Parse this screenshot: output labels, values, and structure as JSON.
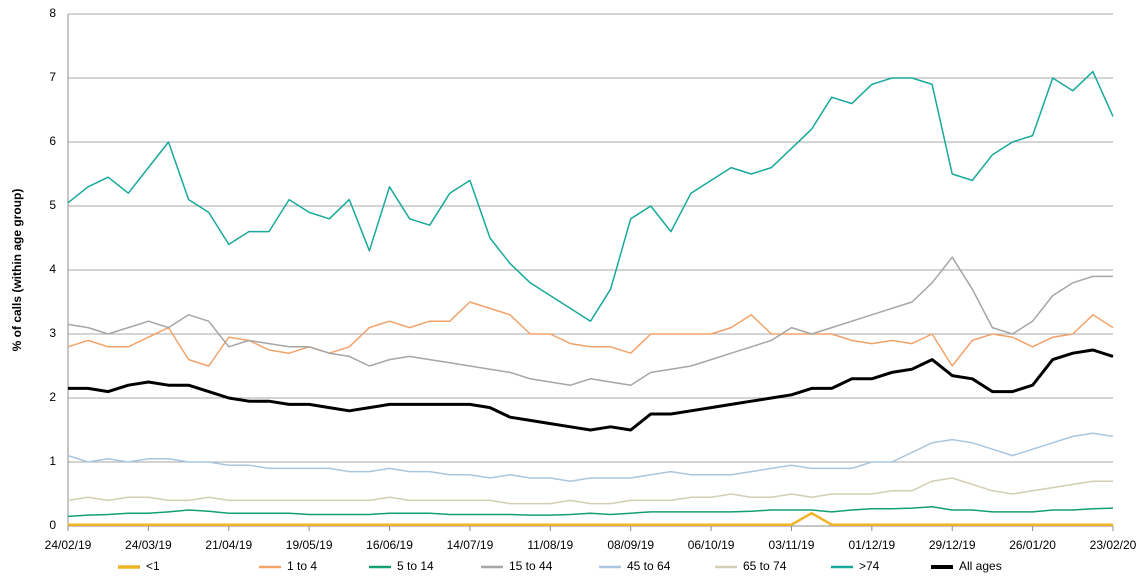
{
  "chart_data": {
    "type": "line",
    "y_label": "% of calls (within age group)",
    "xlim": [
      "2019-02-24",
      "2020-02-23"
    ],
    "xticks": [
      {
        "value": "2019-02-24",
        "label": "24/02/19"
      },
      {
        "value": "2019-03-24",
        "label": "24/03/19"
      },
      {
        "value": "2019-04-21",
        "label": "21/04/19"
      },
      {
        "value": "2019-05-19",
        "label": "19/05/19"
      },
      {
        "value": "2019-06-16",
        "label": "16/06/19"
      },
      {
        "value": "2019-07-14",
        "label": "14/07/19"
      },
      {
        "value": "2019-08-11",
        "label": "11/08/19"
      },
      {
        "value": "2019-09-08",
        "label": "08/09/19"
      },
      {
        "value": "2019-10-06",
        "label": "06/10/19"
      },
      {
        "value": "2019-11-03",
        "label": "03/11/19"
      },
      {
        "value": "2019-12-01",
        "label": "01/12/19"
      },
      {
        "value": "2019-12-29",
        "label": "29/12/19"
      },
      {
        "value": "2020-01-26",
        "label": "26/01/20"
      },
      {
        "value": "2020-02-23",
        "label": "23/02/20"
      }
    ],
    "ylim": [
      0,
      8
    ],
    "yticks": [
      0,
      1,
      2,
      3,
      4,
      5,
      6,
      7,
      8
    ],
    "grid": true,
    "legend": "bottom",
    "x": [
      "2019-02-24",
      "2019-03-03",
      "2019-03-10",
      "2019-03-17",
      "2019-03-24",
      "2019-03-31",
      "2019-04-07",
      "2019-04-14",
      "2019-04-21",
      "2019-04-28",
      "2019-05-05",
      "2019-05-12",
      "2019-05-19",
      "2019-05-26",
      "2019-06-02",
      "2019-06-09",
      "2019-06-16",
      "2019-06-23",
      "2019-06-30",
      "2019-07-07",
      "2019-07-14",
      "2019-07-21",
      "2019-07-28",
      "2019-08-04",
      "2019-08-11",
      "2019-08-18",
      "2019-08-25",
      "2019-09-01",
      "2019-09-08",
      "2019-09-15",
      "2019-09-22",
      "2019-09-29",
      "2019-10-06",
      "2019-10-13",
      "2019-10-20",
      "2019-10-27",
      "2019-11-03",
      "2019-11-10",
      "2019-11-17",
      "2019-11-24",
      "2019-12-01",
      "2019-12-08",
      "2019-12-15",
      "2019-12-22",
      "2019-12-29",
      "2020-01-05",
      "2020-01-12",
      "2020-01-19",
      "2020-01-26",
      "2020-02-02",
      "2020-02-09",
      "2020-02-16",
      "2020-02-23"
    ],
    "series": [
      {
        "name": "<1",
        "color": "#f0b323",
        "width": 2.5,
        "values": [
          0.02,
          0.02,
          0.02,
          0.02,
          0.02,
          0.02,
          0.02,
          0.02,
          0.02,
          0.02,
          0.02,
          0.02,
          0.02,
          0.02,
          0.02,
          0.02,
          0.02,
          0.02,
          0.02,
          0.02,
          0.02,
          0.02,
          0.02,
          0.02,
          0.02,
          0.02,
          0.02,
          0.02,
          0.02,
          0.02,
          0.02,
          0.02,
          0.02,
          0.02,
          0.02,
          0.02,
          0.02,
          0.2,
          0.02,
          0.02,
          0.02,
          0.02,
          0.02,
          0.02,
          0.02,
          0.02,
          0.02,
          0.02,
          0.02,
          0.02,
          0.02,
          0.02,
          0.02
        ]
      },
      {
        "name": "1 to 4",
        "color": "#f2a36a",
        "width": 1.5,
        "values": [
          2.8,
          2.9,
          2.8,
          2.8,
          2.95,
          3.1,
          2.6,
          2.5,
          2.95,
          2.9,
          2.75,
          2.7,
          2.8,
          2.7,
          2.8,
          3.1,
          3.2,
          3.1,
          3.2,
          3.2,
          3.5,
          3.4,
          3.3,
          3.0,
          3.0,
          2.85,
          2.8,
          2.8,
          2.7,
          3.0,
          3.0,
          3.0,
          3.0,
          3.1,
          3.3,
          3.0,
          3.0,
          3.0,
          3.0,
          2.9,
          2.85,
          2.9,
          2.85,
          3.0,
          2.5,
          2.9,
          3.0,
          2.95,
          2.8,
          2.95,
          3.0,
          3.3,
          3.1
        ]
      },
      {
        "name": "5 to 14",
        "color": "#12a06e",
        "width": 1.5,
        "values": [
          0.15,
          0.17,
          0.18,
          0.2,
          0.2,
          0.22,
          0.25,
          0.23,
          0.2,
          0.2,
          0.2,
          0.2,
          0.18,
          0.18,
          0.18,
          0.18,
          0.2,
          0.2,
          0.2,
          0.18,
          0.18,
          0.18,
          0.18,
          0.17,
          0.17,
          0.18,
          0.2,
          0.18,
          0.2,
          0.22,
          0.22,
          0.22,
          0.22,
          0.22,
          0.23,
          0.25,
          0.25,
          0.25,
          0.22,
          0.25,
          0.27,
          0.27,
          0.28,
          0.3,
          0.25,
          0.25,
          0.22,
          0.22,
          0.22,
          0.25,
          0.25,
          0.27,
          0.28
        ]
      },
      {
        "name": "15 to 44",
        "color": "#a6a6a6",
        "width": 1.5,
        "values": [
          3.15,
          3.1,
          3.0,
          3.1,
          3.2,
          3.1,
          3.3,
          3.2,
          2.8,
          2.9,
          2.85,
          2.8,
          2.8,
          2.7,
          2.65,
          2.5,
          2.6,
          2.65,
          2.6,
          2.55,
          2.5,
          2.45,
          2.4,
          2.3,
          2.25,
          2.2,
          2.3,
          2.25,
          2.2,
          2.4,
          2.45,
          2.5,
          2.6,
          2.7,
          2.8,
          2.9,
          3.1,
          3.0,
          3.1,
          3.2,
          3.3,
          3.4,
          3.5,
          3.8,
          4.2,
          3.7,
          3.1,
          3.0,
          3.2,
          3.6,
          3.8,
          3.9,
          3.9
        ]
      },
      {
        "name": "45 to 64",
        "color": "#a9c6de",
        "width": 1.5,
        "values": [
          1.1,
          1.0,
          1.05,
          1.0,
          1.05,
          1.05,
          1.0,
          1.0,
          0.95,
          0.95,
          0.9,
          0.9,
          0.9,
          0.9,
          0.85,
          0.85,
          0.9,
          0.85,
          0.85,
          0.8,
          0.8,
          0.75,
          0.8,
          0.75,
          0.75,
          0.7,
          0.75,
          0.75,
          0.75,
          0.8,
          0.85,
          0.8,
          0.8,
          0.8,
          0.85,
          0.9,
          0.95,
          0.9,
          0.9,
          0.9,
          1.0,
          1.0,
          1.15,
          1.3,
          1.35,
          1.3,
          1.2,
          1.1,
          1.2,
          1.3,
          1.4,
          1.45,
          1.4
        ]
      },
      {
        "name": "65 to 74",
        "color": "#d3cfb4",
        "width": 1.5,
        "values": [
          0.4,
          0.45,
          0.4,
          0.45,
          0.45,
          0.4,
          0.4,
          0.45,
          0.4,
          0.4,
          0.4,
          0.4,
          0.4,
          0.4,
          0.4,
          0.4,
          0.45,
          0.4,
          0.4,
          0.4,
          0.4,
          0.4,
          0.35,
          0.35,
          0.35,
          0.4,
          0.35,
          0.35,
          0.4,
          0.4,
          0.4,
          0.45,
          0.45,
          0.5,
          0.45,
          0.45,
          0.5,
          0.45,
          0.5,
          0.5,
          0.5,
          0.55,
          0.55,
          0.7,
          0.75,
          0.65,
          0.55,
          0.5,
          0.55,
          0.6,
          0.65,
          0.7,
          0.7
        ]
      },
      {
        "name": ">74",
        "color": "#17a99b",
        "width": 1.5,
        "values": [
          5.05,
          5.3,
          5.45,
          5.2,
          5.6,
          6.0,
          5.1,
          4.9,
          4.4,
          4.6,
          4.6,
          5.1,
          4.9,
          4.8,
          5.1,
          4.3,
          5.3,
          4.8,
          4.7,
          5.2,
          5.4,
          4.5,
          4.1,
          3.8,
          3.6,
          3.4,
          3.2,
          3.7,
          4.8,
          5.0,
          4.6,
          5.2,
          5.4,
          5.6,
          5.5,
          5.6,
          5.9,
          6.2,
          6.7,
          6.6,
          6.9,
          7.0,
          7.0,
          6.9,
          5.5,
          5.4,
          5.8,
          6.0,
          6.1,
          7.0,
          6.8,
          7.1,
          6.4
        ]
      },
      {
        "name": "All ages",
        "color": "#000000",
        "width": 3,
        "values": [
          2.15,
          2.15,
          2.1,
          2.2,
          2.25,
          2.2,
          2.2,
          2.1,
          2.0,
          1.95,
          1.95,
          1.9,
          1.9,
          1.85,
          1.8,
          1.85,
          1.9,
          1.9,
          1.9,
          1.9,
          1.9,
          1.85,
          1.7,
          1.65,
          1.6,
          1.55,
          1.5,
          1.55,
          1.5,
          1.75,
          1.75,
          1.8,
          1.85,
          1.9,
          1.95,
          2.0,
          2.05,
          2.15,
          2.15,
          2.3,
          2.3,
          2.4,
          2.45,
          2.6,
          2.35,
          2.3,
          2.1,
          2.1,
          2.2,
          2.6,
          2.7,
          2.75,
          2.65
        ]
      }
    ]
  }
}
